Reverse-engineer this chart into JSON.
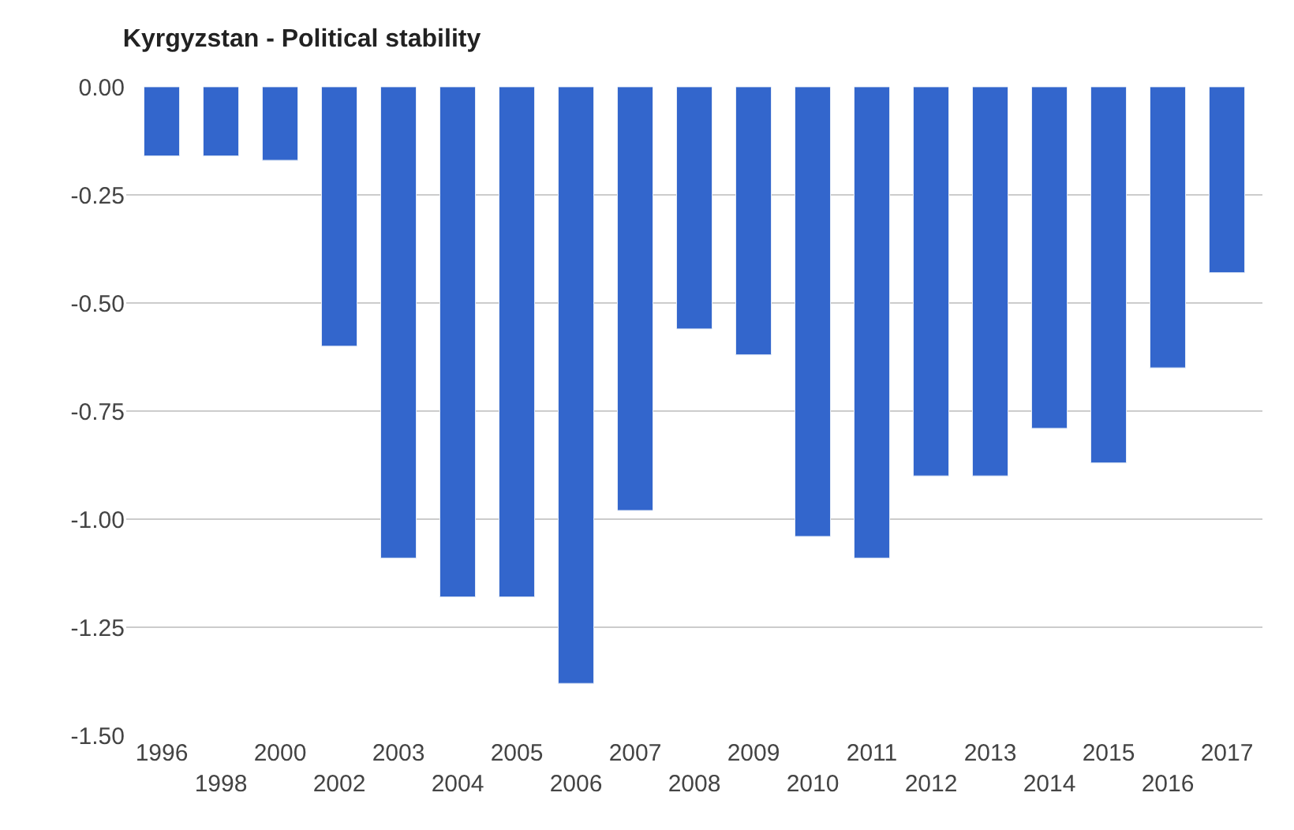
{
  "chart_data": {
    "type": "bar",
    "title": "Kyrgyzstan - Political stability",
    "categories": [
      "1996",
      "1998",
      "2000",
      "2002",
      "2003",
      "2004",
      "2005",
      "2006",
      "2007",
      "2008",
      "2009",
      "2010",
      "2011",
      "2012",
      "2013",
      "2014",
      "2015",
      "2016",
      "2017"
    ],
    "values": [
      -0.16,
      -0.16,
      -0.17,
      -0.6,
      -1.09,
      -1.18,
      -1.18,
      -1.38,
      -0.98,
      -0.56,
      -0.62,
      -1.04,
      -1.09,
      -0.9,
      -0.9,
      -0.79,
      -0.87,
      -0.65,
      -0.43
    ],
    "color": "#3366cc",
    "ylim": [
      -1.5,
      0
    ],
    "yticks": [
      {
        "value": 0,
        "label": "0.00"
      },
      {
        "value": -0.25,
        "label": "-0.25"
      },
      {
        "value": -0.5,
        "label": "-0.50"
      },
      {
        "value": -0.75,
        "label": "-0.75"
      },
      {
        "value": -1.0,
        "label": "-1.00"
      },
      {
        "value": -1.25,
        "label": "-1.25"
      },
      {
        "value": -1.5,
        "label": "-1.50"
      }
    ],
    "grid": "y"
  }
}
